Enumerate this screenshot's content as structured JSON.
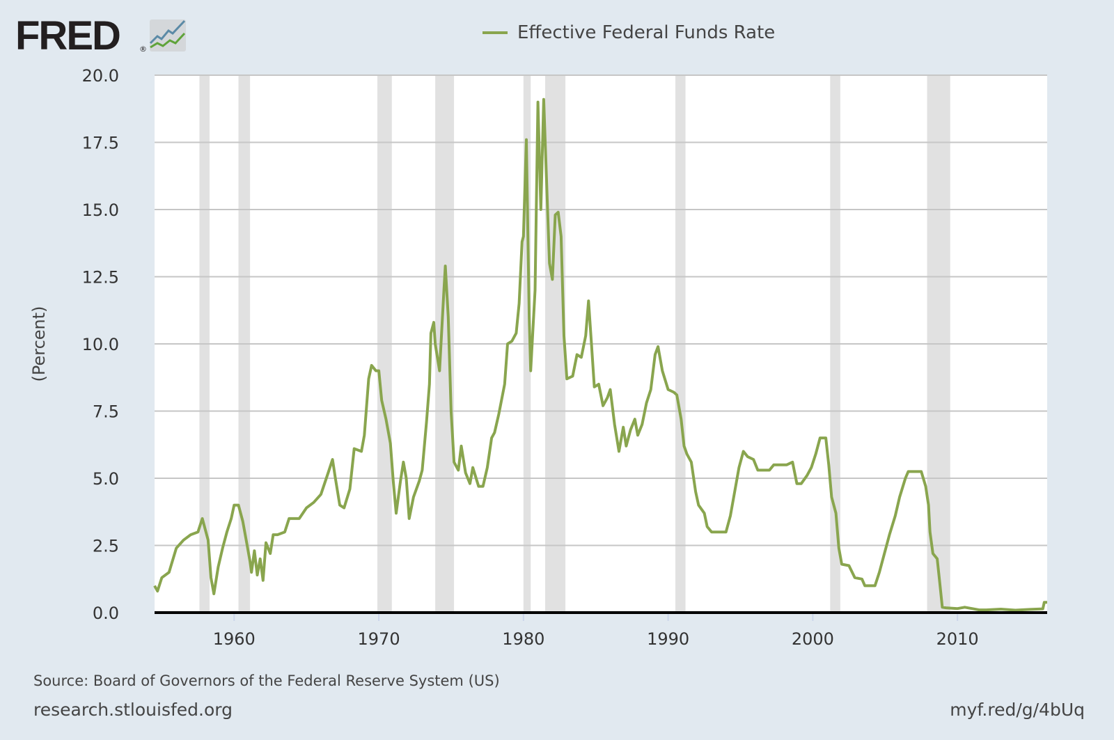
{
  "logo": {
    "text": "FRED",
    "registered": "®"
  },
  "legend": {
    "label": "Effective Federal Funds Rate",
    "color": "#89a54e"
  },
  "footer": {
    "source": "Source: Board of Governors of the Federal Reserve System (US)",
    "site": "research.stlouisfed.org",
    "short_url": "myf.red/g/4bUq"
  },
  "chart_data": {
    "type": "line",
    "title": "",
    "xlabel": "",
    "ylabel": "(Percent)",
    "xlim": [
      1954.5,
      2016.2
    ],
    "ylim": [
      0,
      20
    ],
    "y_ticks": [
      "0.0",
      "2.5",
      "5.0",
      "7.5",
      "10.0",
      "12.5",
      "15.0",
      "17.5",
      "20.0"
    ],
    "x_ticks": [
      "1960",
      "1970",
      "1980",
      "1990",
      "2000",
      "2010"
    ],
    "grid": "horizontal",
    "legend_position": "top-center",
    "recession_color": "#e1e1e1",
    "recessions": [
      [
        1957.6,
        1958.3
      ],
      [
        1960.3,
        1961.1
      ],
      [
        1969.9,
        1970.9
      ],
      [
        1973.9,
        1975.2
      ],
      [
        1980.0,
        1980.5
      ],
      [
        1981.5,
        1982.9
      ],
      [
        1990.5,
        1991.2
      ],
      [
        2001.2,
        2001.9
      ],
      [
        2007.9,
        2009.5
      ]
    ],
    "series": [
      {
        "name": "Effective Federal Funds Rate",
        "color": "#89a54e",
        "points": [
          [
            1954.5,
            1.0
          ],
          [
            1954.7,
            0.8
          ],
          [
            1955.0,
            1.3
          ],
          [
            1955.5,
            1.5
          ],
          [
            1956.0,
            2.4
          ],
          [
            1956.5,
            2.7
          ],
          [
            1957.0,
            2.9
          ],
          [
            1957.5,
            3.0
          ],
          [
            1957.8,
            3.5
          ],
          [
            1958.2,
            2.7
          ],
          [
            1958.4,
            1.3
          ],
          [
            1958.6,
            0.7
          ],
          [
            1958.9,
            1.7
          ],
          [
            1959.2,
            2.4
          ],
          [
            1959.5,
            3.0
          ],
          [
            1959.8,
            3.5
          ],
          [
            1960.0,
            4.0
          ],
          [
            1960.3,
            4.0
          ],
          [
            1960.6,
            3.4
          ],
          [
            1960.9,
            2.5
          ],
          [
            1961.1,
            1.9
          ],
          [
            1961.2,
            1.5
          ],
          [
            1961.4,
            2.3
          ],
          [
            1961.6,
            1.4
          ],
          [
            1961.8,
            2.0
          ],
          [
            1962.0,
            1.2
          ],
          [
            1962.2,
            2.6
          ],
          [
            1962.5,
            2.2
          ],
          [
            1962.7,
            2.9
          ],
          [
            1963.0,
            2.9
          ],
          [
            1963.5,
            3.0
          ],
          [
            1963.8,
            3.5
          ],
          [
            1964.5,
            3.5
          ],
          [
            1965.0,
            3.9
          ],
          [
            1965.5,
            4.1
          ],
          [
            1966.0,
            4.4
          ],
          [
            1966.5,
            5.2
          ],
          [
            1966.8,
            5.7
          ],
          [
            1967.0,
            5.0
          ],
          [
            1967.3,
            4.0
          ],
          [
            1967.6,
            3.9
          ],
          [
            1968.0,
            4.6
          ],
          [
            1968.3,
            6.1
          ],
          [
            1968.8,
            6.0
          ],
          [
            1969.0,
            6.6
          ],
          [
            1969.3,
            8.7
          ],
          [
            1969.5,
            9.2
          ],
          [
            1969.8,
            9.0
          ],
          [
            1970.0,
            9.0
          ],
          [
            1970.2,
            7.9
          ],
          [
            1970.5,
            7.2
          ],
          [
            1970.8,
            6.3
          ],
          [
            1971.0,
            4.9
          ],
          [
            1971.2,
            3.7
          ],
          [
            1971.5,
            4.9
          ],
          [
            1971.7,
            5.6
          ],
          [
            1971.9,
            5.0
          ],
          [
            1972.1,
            3.5
          ],
          [
            1972.4,
            4.3
          ],
          [
            1972.8,
            4.9
          ],
          [
            1973.0,
            5.3
          ],
          [
            1973.3,
            7.1
          ],
          [
            1973.5,
            8.5
          ],
          [
            1973.6,
            10.4
          ],
          [
            1973.8,
            10.8
          ],
          [
            1973.9,
            10.0
          ],
          [
            1974.2,
            9.0
          ],
          [
            1974.5,
            12.0
          ],
          [
            1974.6,
            12.9
          ],
          [
            1974.8,
            11.0
          ],
          [
            1975.0,
            7.5
          ],
          [
            1975.2,
            5.6
          ],
          [
            1975.5,
            5.3
          ],
          [
            1975.7,
            6.2
          ],
          [
            1976.0,
            5.2
          ],
          [
            1976.3,
            4.8
          ],
          [
            1976.5,
            5.4
          ],
          [
            1976.9,
            4.7
          ],
          [
            1977.2,
            4.7
          ],
          [
            1977.5,
            5.4
          ],
          [
            1977.8,
            6.5
          ],
          [
            1978.0,
            6.7
          ],
          [
            1978.3,
            7.4
          ],
          [
            1978.7,
            8.5
          ],
          [
            1978.9,
            10.0
          ],
          [
            1979.2,
            10.1
          ],
          [
            1979.5,
            10.4
          ],
          [
            1979.7,
            11.5
          ],
          [
            1979.9,
            13.8
          ],
          [
            1980.0,
            14.0
          ],
          [
            1980.2,
            17.6
          ],
          [
            1980.4,
            11.0
          ],
          [
            1980.5,
            9.0
          ],
          [
            1980.8,
            12.0
          ],
          [
            1981.0,
            19.0
          ],
          [
            1981.2,
            15.0
          ],
          [
            1981.4,
            19.1
          ],
          [
            1981.6,
            16.0
          ],
          [
            1981.8,
            13.0
          ],
          [
            1982.0,
            12.4
          ],
          [
            1982.2,
            14.8
          ],
          [
            1982.4,
            14.9
          ],
          [
            1982.6,
            14.0
          ],
          [
            1982.8,
            10.3
          ],
          [
            1983.0,
            8.7
          ],
          [
            1983.4,
            8.8
          ],
          [
            1983.7,
            9.6
          ],
          [
            1984.0,
            9.5
          ],
          [
            1984.3,
            10.3
          ],
          [
            1984.5,
            11.6
          ],
          [
            1984.7,
            10.0
          ],
          [
            1984.9,
            8.4
          ],
          [
            1985.2,
            8.5
          ],
          [
            1985.5,
            7.7
          ],
          [
            1985.8,
            8.0
          ],
          [
            1986.0,
            8.3
          ],
          [
            1986.3,
            7.0
          ],
          [
            1986.6,
            6.0
          ],
          [
            1986.9,
            6.9
          ],
          [
            1987.1,
            6.2
          ],
          [
            1987.4,
            6.8
          ],
          [
            1987.7,
            7.2
          ],
          [
            1987.9,
            6.6
          ],
          [
            1988.2,
            7.0
          ],
          [
            1988.5,
            7.8
          ],
          [
            1988.8,
            8.3
          ],
          [
            1989.1,
            9.6
          ],
          [
            1989.3,
            9.9
          ],
          [
            1989.6,
            9.0
          ],
          [
            1990.0,
            8.3
          ],
          [
            1990.4,
            8.2
          ],
          [
            1990.6,
            8.1
          ],
          [
            1990.9,
            7.2
          ],
          [
            1991.1,
            6.2
          ],
          [
            1991.3,
            5.9
          ],
          [
            1991.6,
            5.6
          ],
          [
            1991.9,
            4.5
          ],
          [
            1992.1,
            4.0
          ],
          [
            1992.5,
            3.7
          ],
          [
            1992.7,
            3.2
          ],
          [
            1993.0,
            3.0
          ],
          [
            1993.5,
            3.0
          ],
          [
            1994.0,
            3.0
          ],
          [
            1994.3,
            3.6
          ],
          [
            1994.6,
            4.5
          ],
          [
            1994.9,
            5.4
          ],
          [
            1995.2,
            6.0
          ],
          [
            1995.5,
            5.8
          ],
          [
            1995.9,
            5.7
          ],
          [
            1996.2,
            5.3
          ],
          [
            1996.6,
            5.3
          ],
          [
            1997.0,
            5.3
          ],
          [
            1997.3,
            5.5
          ],
          [
            1997.8,
            5.5
          ],
          [
            1998.2,
            5.5
          ],
          [
            1998.6,
            5.6
          ],
          [
            1998.9,
            4.8
          ],
          [
            1999.2,
            4.8
          ],
          [
            1999.6,
            5.1
          ],
          [
            1999.9,
            5.4
          ],
          [
            2000.2,
            5.9
          ],
          [
            2000.5,
            6.5
          ],
          [
            2000.9,
            6.5
          ],
          [
            2001.1,
            5.5
          ],
          [
            2001.3,
            4.3
          ],
          [
            2001.6,
            3.7
          ],
          [
            2001.8,
            2.4
          ],
          [
            2002.0,
            1.8
          ],
          [
            2002.5,
            1.75
          ],
          [
            2002.9,
            1.3
          ],
          [
            2003.4,
            1.25
          ],
          [
            2003.6,
            1.0
          ],
          [
            2004.3,
            1.0
          ],
          [
            2004.6,
            1.5
          ],
          [
            2005.0,
            2.3
          ],
          [
            2005.3,
            2.9
          ],
          [
            2005.7,
            3.6
          ],
          [
            2006.0,
            4.3
          ],
          [
            2006.4,
            5.0
          ],
          [
            2006.6,
            5.25
          ],
          [
            2007.2,
            5.25
          ],
          [
            2007.5,
            5.25
          ],
          [
            2007.8,
            4.7
          ],
          [
            2008.0,
            4.0
          ],
          [
            2008.1,
            3.0
          ],
          [
            2008.3,
            2.2
          ],
          [
            2008.6,
            2.0
          ],
          [
            2008.8,
            1.0
          ],
          [
            2008.95,
            0.2
          ],
          [
            2009.2,
            0.18
          ],
          [
            2010.0,
            0.15
          ],
          [
            2010.5,
            0.2
          ],
          [
            2011.0,
            0.15
          ],
          [
            2011.5,
            0.1
          ],
          [
            2012.0,
            0.1
          ],
          [
            2013.0,
            0.13
          ],
          [
            2014.0,
            0.09
          ],
          [
            2015.0,
            0.12
          ],
          [
            2015.9,
            0.14
          ],
          [
            2016.0,
            0.38
          ],
          [
            2016.2,
            0.38
          ]
        ]
      }
    ]
  }
}
